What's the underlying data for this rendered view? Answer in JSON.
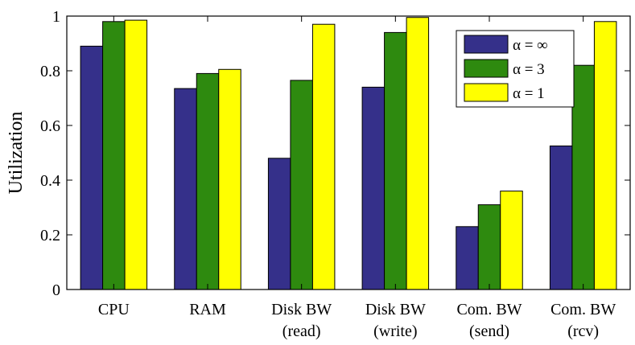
{
  "chart_data": {
    "type": "bar",
    "title": "",
    "xlabel": "",
    "ylabel": "Utilization",
    "ylim": [
      0,
      1
    ],
    "yticks": [
      0,
      0.2,
      0.4,
      0.6,
      0.8,
      1
    ],
    "ytick_labels": [
      "0",
      "0.2",
      "0.4",
      "0.6",
      "0.8",
      "1"
    ],
    "grid": false,
    "legend_position": "top-right",
    "categories": [
      [
        "CPU"
      ],
      [
        "RAM"
      ],
      [
        "Disk BW",
        "(read)"
      ],
      [
        "Disk BW",
        "(write)"
      ],
      [
        "Com. BW",
        "(send)"
      ],
      [
        "Com. BW",
        "(rcv)"
      ]
    ],
    "series": [
      {
        "name": "α = ∞",
        "color": "#35308a",
        "values": [
          0.89,
          0.735,
          0.48,
          0.74,
          0.23,
          0.525
        ]
      },
      {
        "name": "α = 3",
        "color": "#2e8a0f",
        "values": [
          0.98,
          0.79,
          0.765,
          0.94,
          0.31,
          0.82
        ]
      },
      {
        "name": "α = 1",
        "color": "#ffff00",
        "values": [
          0.985,
          0.805,
          0.97,
          0.995,
          0.36,
          0.98
        ]
      }
    ]
  }
}
